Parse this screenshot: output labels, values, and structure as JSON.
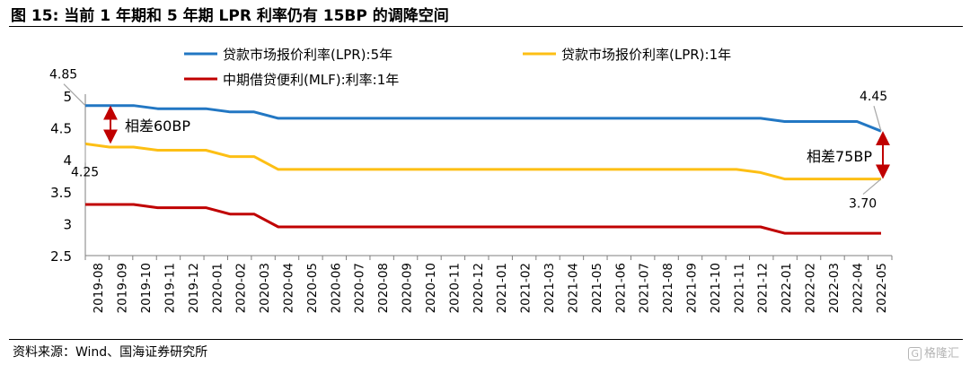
{
  "header": {
    "title": "图 15:  当前 1 年期和 5 年期 LPR 利率仍有 15BP 的调降空间"
  },
  "footer": {
    "source": "资料来源：Wind、国海证券研究所",
    "watermark": "格隆汇",
    "watermark_logo": "G"
  },
  "colors": {
    "lpr5": "#2277c3",
    "lpr1": "#fdbf14",
    "mlf": "#c00000",
    "arrow": "#c00000",
    "callout": "#a6a6a6"
  },
  "chart_data": {
    "type": "line",
    "title": "",
    "xlabel": "",
    "ylabel": "",
    "ylim": [
      2.5,
      5
    ],
    "yticks": [
      "2.5",
      "3",
      "3.5",
      "4",
      "4.5",
      "5"
    ],
    "legend": "top",
    "grid": false,
    "categories": [
      "2019-08",
      "2019-09",
      "2019-10",
      "2019-11",
      "2019-12",
      "2020-01",
      "2020-02",
      "2020-03",
      "2020-04",
      "2020-05",
      "2020-06",
      "2020-07",
      "2020-08",
      "2020-09",
      "2020-10",
      "2020-11",
      "2020-12",
      "2021-01",
      "2021-02",
      "2021-03",
      "2021-04",
      "2021-05",
      "2021-06",
      "2021-07",
      "2021-08",
      "2021-09",
      "2021-10",
      "2021-11",
      "2021-12",
      "2022-01",
      "2022-02",
      "2022-03",
      "2022-04",
      "2022-05"
    ],
    "series": [
      {
        "name": "贷款市场报价利率(LPR):5年",
        "color": "#2277c3",
        "values": [
          4.85,
          4.85,
          4.85,
          4.8,
          4.8,
          4.8,
          4.75,
          4.75,
          4.65,
          4.65,
          4.65,
          4.65,
          4.65,
          4.65,
          4.65,
          4.65,
          4.65,
          4.65,
          4.65,
          4.65,
          4.65,
          4.65,
          4.65,
          4.65,
          4.65,
          4.65,
          4.65,
          4.65,
          4.65,
          4.6,
          4.6,
          4.6,
          4.6,
          4.45
        ]
      },
      {
        "name": "贷款市场报价利率(LPR):1年",
        "color": "#fdbf14",
        "values": [
          4.25,
          4.2,
          4.2,
          4.15,
          4.15,
          4.15,
          4.05,
          4.05,
          3.85,
          3.85,
          3.85,
          3.85,
          3.85,
          3.85,
          3.85,
          3.85,
          3.85,
          3.85,
          3.85,
          3.85,
          3.85,
          3.85,
          3.85,
          3.85,
          3.85,
          3.85,
          3.85,
          3.85,
          3.8,
          3.7,
          3.7,
          3.7,
          3.7,
          3.7
        ]
      },
      {
        "name": "中期借贷便利(MLF):利率:1年",
        "color": "#c00000",
        "values": [
          3.3,
          3.3,
          3.3,
          3.25,
          3.25,
          3.25,
          3.15,
          3.15,
          2.95,
          2.95,
          2.95,
          2.95,
          2.95,
          2.95,
          2.95,
          2.95,
          2.95,
          2.95,
          2.95,
          2.95,
          2.95,
          2.95,
          2.95,
          2.95,
          2.95,
          2.95,
          2.95,
          2.95,
          2.95,
          2.85,
          2.85,
          2.85,
          2.85,
          2.85
        ]
      }
    ],
    "annotations": [
      {
        "text": "4.85",
        "series": 0,
        "index": 0
      },
      {
        "text": "4.25",
        "series": 1,
        "index": 0
      },
      {
        "text": "4.45",
        "series": 0,
        "index": 33
      },
      {
        "text": "3.70",
        "series": 1,
        "index": 33
      },
      {
        "text": "相差60BP",
        "type": "spread",
        "index": 0,
        "from": 4.85,
        "to": 4.25
      },
      {
        "text": "相差75BP",
        "type": "spread",
        "index": 33,
        "from": 4.45,
        "to": 3.7
      }
    ]
  }
}
